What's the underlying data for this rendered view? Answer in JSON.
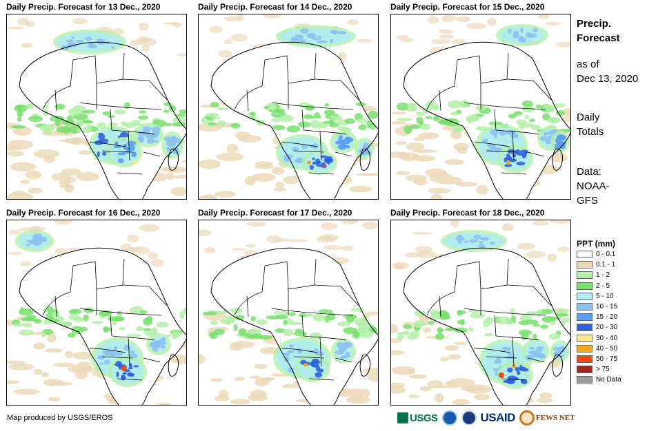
{
  "panels": [
    {
      "title": "Daily Precip. Forecast for 13 Dec., 2020"
    },
    {
      "title": "Daily Precip. Forecast for 14 Dec., 2020"
    },
    {
      "title": "Daily Precip. Forecast for 15 Dec., 2020"
    },
    {
      "title": "Daily Precip. Forecast for 16 Dec., 2020"
    },
    {
      "title": "Daily Precip. Forecast for 17 Dec., 2020"
    },
    {
      "title": "Daily Precip. Forecast for 18 Dec., 2020"
    }
  ],
  "sidebar": {
    "title_line1": "Precip.",
    "title_line2": "Forecast",
    "asof_line1": "as of",
    "asof_line2": "Dec 13, 2020",
    "totals_line1": "Daily",
    "totals_line2": "Totals",
    "data_line1": "Data:",
    "data_line2": "NOAA-",
    "data_line3": "GFS"
  },
  "legend": {
    "title": "PPT (mm)",
    "items": [
      {
        "label": "0 - 0.1",
        "color": "#ffffff"
      },
      {
        "label": "0.1 - 1",
        "color": "#ecd9b9"
      },
      {
        "label": "1 - 2",
        "color": "#b3f0a8"
      },
      {
        "label": "2 - 5",
        "color": "#78df6c"
      },
      {
        "label": "5 - 10",
        "color": "#b0eaf5"
      },
      {
        "label": "10 - 15",
        "color": "#8cc2f0"
      },
      {
        "label": "15 - 20",
        "color": "#5a9ff0"
      },
      {
        "label": "20 - 30",
        "color": "#2d63dc"
      },
      {
        "label": "30 - 40",
        "color": "#fbe98a"
      },
      {
        "label": "40 - 50",
        "color": "#f5a623"
      },
      {
        "label": "50 - 75",
        "color": "#ee4a1c"
      },
      {
        "label": "> 75",
        "color": "#a3261e"
      },
      {
        "label": "No Data",
        "color": "#9a9a9a"
      }
    ]
  },
  "footer": {
    "credit": "Map produced by USGS/EROS"
  },
  "logos": {
    "usgs": "USGS",
    "usaid": "USAID",
    "fews": "FEWS NET"
  }
}
